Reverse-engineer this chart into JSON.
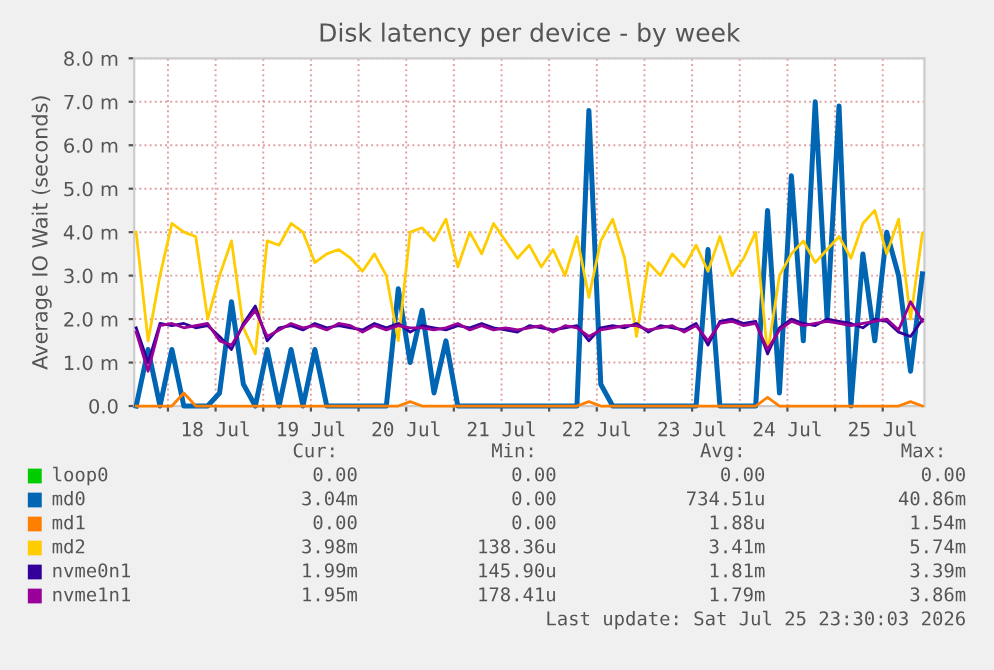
{
  "chart_data": {
    "type": "line",
    "title": "Disk latency per device - by week",
    "ylabel": "Average IO Wait (seconds)",
    "x": [
      "2026-07-17T16:00",
      "2026-07-17T19:00",
      "2026-07-17T22:00",
      "2026-07-18T01:00",
      "2026-07-18T04:00",
      "2026-07-18T07:00",
      "2026-07-18T10:00",
      "2026-07-18T13:00",
      "2026-07-18T16:00",
      "2026-07-18T19:00",
      "2026-07-18T22:00",
      "2026-07-19T01:00",
      "2026-07-19T04:00",
      "2026-07-19T07:00",
      "2026-07-19T10:00",
      "2026-07-19T13:00",
      "2026-07-19T16:00",
      "2026-07-19T19:00",
      "2026-07-19T22:00",
      "2026-07-20T01:00",
      "2026-07-20T04:00",
      "2026-07-20T07:00",
      "2026-07-20T10:00",
      "2026-07-20T13:00",
      "2026-07-20T16:00",
      "2026-07-20T19:00",
      "2026-07-20T22:00",
      "2026-07-21T01:00",
      "2026-07-21T04:00",
      "2026-07-21T07:00",
      "2026-07-21T10:00",
      "2026-07-21T13:00",
      "2026-07-21T16:00",
      "2026-07-21T19:00",
      "2026-07-21T22:00",
      "2026-07-22T01:00",
      "2026-07-22T04:00",
      "2026-07-22T07:00",
      "2026-07-22T10:00",
      "2026-07-22T13:00",
      "2026-07-22T16:00",
      "2026-07-22T19:00",
      "2026-07-22T22:00",
      "2026-07-23T01:00",
      "2026-07-23T04:00",
      "2026-07-23T07:00",
      "2026-07-23T10:00",
      "2026-07-23T13:00",
      "2026-07-23T16:00",
      "2026-07-23T19:00",
      "2026-07-23T22:00",
      "2026-07-24T01:00",
      "2026-07-24T04:00",
      "2026-07-24T07:00",
      "2026-07-24T10:00",
      "2026-07-24T13:00",
      "2026-07-24T16:00",
      "2026-07-24T19:00",
      "2026-07-24T22:00",
      "2026-07-25T01:00",
      "2026-07-25T04:00",
      "2026-07-25T07:00",
      "2026-07-25T10:00",
      "2026-07-25T13:00",
      "2026-07-25T16:00",
      "2026-07-25T19:00",
      "2026-07-25T22:00"
    ],
    "series": [
      {
        "name": "loop0",
        "color": "#00cc00",
        "values": [
          null,
          null,
          null,
          null,
          null,
          null,
          null,
          null,
          null,
          null,
          null,
          null,
          null,
          null,
          null,
          null,
          null,
          null,
          null,
          null,
          null,
          null,
          null,
          null,
          null,
          null,
          null,
          null,
          null,
          null,
          null,
          null,
          null,
          null,
          null,
          null,
          null,
          null,
          null,
          null,
          null,
          null,
          null,
          null,
          null,
          null,
          null,
          null,
          null,
          null,
          null,
          null,
          null,
          null,
          null,
          null,
          null,
          null,
          null,
          null,
          null,
          null,
          null,
          null,
          null,
          null,
          null
        ]
      },
      {
        "name": "md0",
        "color": "#0066b3",
        "values": [
          0,
          1.3,
          0,
          1.3,
          0,
          0,
          0,
          0.3,
          2.4,
          0.5,
          0,
          1.3,
          0,
          1.3,
          0,
          1.3,
          0,
          0,
          0,
          0,
          0,
          0,
          2.7,
          1.0,
          2.2,
          0.3,
          1.5,
          0,
          0,
          0,
          0,
          0,
          0,
          0,
          0,
          0,
          0,
          0,
          6.8,
          0.5,
          0,
          0,
          0,
          0,
          0,
          0,
          0,
          0,
          3.6,
          0,
          0,
          0,
          0,
          4.5,
          0.3,
          5.3,
          1.5,
          7.0,
          2.0,
          6.9,
          0,
          3.5,
          1.5,
          4.0,
          3.0,
          0.8,
          3.04
        ]
      },
      {
        "name": "md1",
        "color": "#ff8000",
        "values": [
          0,
          0,
          0,
          0,
          0.3,
          0,
          0,
          0,
          0,
          0,
          0,
          0,
          0,
          0,
          0,
          0,
          0,
          0,
          0,
          0,
          0,
          0,
          0,
          0.1,
          0,
          0,
          0,
          0,
          0,
          0,
          0,
          0,
          0,
          0,
          0,
          0,
          0,
          0,
          0.1,
          0,
          0,
          0,
          0,
          0,
          0,
          0,
          0,
          0,
          0,
          0,
          0,
          0,
          0,
          0.2,
          0,
          0,
          0,
          0,
          0,
          0,
          0,
          0,
          0,
          0,
          0,
          0.1,
          0
        ]
      },
      {
        "name": "md2",
        "color": "#ffcc00",
        "values": [
          4.0,
          1.5,
          3.0,
          4.2,
          4.0,
          3.9,
          2.0,
          3.0,
          3.8,
          1.8,
          1.2,
          3.8,
          3.7,
          4.2,
          4.0,
          3.3,
          3.5,
          3.6,
          3.4,
          3.1,
          3.5,
          3.0,
          1.5,
          4.0,
          4.1,
          3.8,
          4.3,
          3.2,
          4.0,
          3.5,
          4.2,
          3.8,
          3.4,
          3.7,
          3.2,
          3.6,
          3.0,
          3.9,
          2.5,
          3.8,
          4.3,
          3.4,
          1.6,
          3.3,
          3.0,
          3.5,
          3.2,
          3.7,
          3.1,
          3.9,
          3.0,
          3.4,
          4.0,
          1.2,
          3.0,
          3.5,
          3.8,
          3.3,
          3.6,
          3.9,
          3.4,
          4.2,
          4.5,
          3.5,
          4.3,
          2.0,
          3.98
        ]
      },
      {
        "name": "nvme0n1",
        "color": "#330099",
        "values": [
          1.8,
          1.0,
          1.9,
          1.85,
          1.9,
          1.8,
          1.85,
          1.6,
          1.3,
          1.9,
          2.3,
          1.5,
          1.8,
          1.85,
          1.75,
          1.9,
          1.8,
          1.85,
          1.8,
          1.75,
          1.9,
          1.8,
          1.9,
          1.7,
          1.85,
          1.8,
          1.75,
          1.85,
          1.8,
          1.9,
          1.8,
          1.75,
          1.7,
          1.85,
          1.8,
          1.75,
          1.8,
          1.85,
          1.5,
          1.8,
          1.85,
          1.8,
          1.9,
          1.7,
          1.85,
          1.8,
          1.75,
          1.9,
          1.4,
          1.95,
          2.0,
          1.9,
          1.95,
          1.2,
          1.8,
          2.0,
          1.9,
          1.85,
          2.0,
          1.95,
          1.9,
          1.8,
          2.0,
          1.95,
          1.7,
          1.6,
          1.99
        ]
      },
      {
        "name": "nvme1n1",
        "color": "#990099",
        "values": [
          1.7,
          0.8,
          1.85,
          1.9,
          1.8,
          1.85,
          1.9,
          1.5,
          1.4,
          1.85,
          2.2,
          1.6,
          1.75,
          1.9,
          1.8,
          1.85,
          1.75,
          1.9,
          1.85,
          1.7,
          1.85,
          1.75,
          1.85,
          1.8,
          1.8,
          1.75,
          1.8,
          1.9,
          1.75,
          1.85,
          1.75,
          1.8,
          1.75,
          1.8,
          1.85,
          1.7,
          1.85,
          1.8,
          1.6,
          1.75,
          1.8,
          1.85,
          1.85,
          1.75,
          1.8,
          1.85,
          1.7,
          1.85,
          1.5,
          1.9,
          1.95,
          1.85,
          1.9,
          1.3,
          1.75,
          1.95,
          1.85,
          1.9,
          1.95,
          1.9,
          1.85,
          1.9,
          1.95,
          2.0,
          1.75,
          2.4,
          1.95
        ]
      }
    ],
    "xlim": [
      "2026-07-17T15:30",
      "2026-07-25T22:30"
    ],
    "xticks": [
      {
        "value": "2026-07-18T00:00",
        "label": null
      },
      {
        "value": "2026-07-18T12:00",
        "label": "18 Jul"
      },
      {
        "value": "2026-07-19T00:00",
        "label": null
      },
      {
        "value": "2026-07-19T12:00",
        "label": "19 Jul"
      },
      {
        "value": "2026-07-20T00:00",
        "label": null
      },
      {
        "value": "2026-07-20T12:00",
        "label": "20 Jul"
      },
      {
        "value": "2026-07-21T00:00",
        "label": null
      },
      {
        "value": "2026-07-21T12:00",
        "label": "21 Jul"
      },
      {
        "value": "2026-07-22T00:00",
        "label": null
      },
      {
        "value": "2026-07-22T12:00",
        "label": "22 Jul"
      },
      {
        "value": "2026-07-23T00:00",
        "label": null
      },
      {
        "value": "2026-07-23T12:00",
        "label": "23 Jul"
      },
      {
        "value": "2026-07-24T00:00",
        "label": null
      },
      {
        "value": "2026-07-24T12:00",
        "label": "24 Jul"
      },
      {
        "value": "2026-07-25T00:00",
        "label": null
      },
      {
        "value": "2026-07-25T12:00",
        "label": "25 Jul"
      }
    ],
    "ylim": [
      0,
      8
    ],
    "yticks": [
      {
        "value": 0,
        "label": "0.0"
      },
      {
        "value": 1,
        "label": "1.0 m"
      },
      {
        "value": 2,
        "label": "2.0 m"
      },
      {
        "value": 3,
        "label": "3.0 m"
      },
      {
        "value": 4,
        "label": "4.0 m"
      },
      {
        "value": 5,
        "label": "5.0 m"
      },
      {
        "value": 6,
        "label": "6.0 m"
      },
      {
        "value": 7,
        "label": "7.0 m"
      },
      {
        "value": 8,
        "label": "8.0 m"
      }
    ],
    "grid": true,
    "legend": "bottom",
    "marker": "none",
    "line_style": "solid",
    "annotations": [
      "Cur:",
      "Min:",
      "Avg:",
      "Max:",
      "0.00",
      "0.00",
      "0.00",
      "0.00",
      "3.04m",
      "0.00",
      "734.51u",
      "40.86m",
      "0.00",
      "0.00",
      "1.88u",
      "1.54m",
      "3.98m",
      "138.36u",
      "3.41m",
      "5.74m",
      "1.99m",
      "145.90u",
      "1.81m",
      "3.39m",
      "1.95m",
      "178.41u",
      "1.79m",
      "3.86m",
      "Last update: Sat Jul 25 23:30:03 2026"
    ]
  }
}
